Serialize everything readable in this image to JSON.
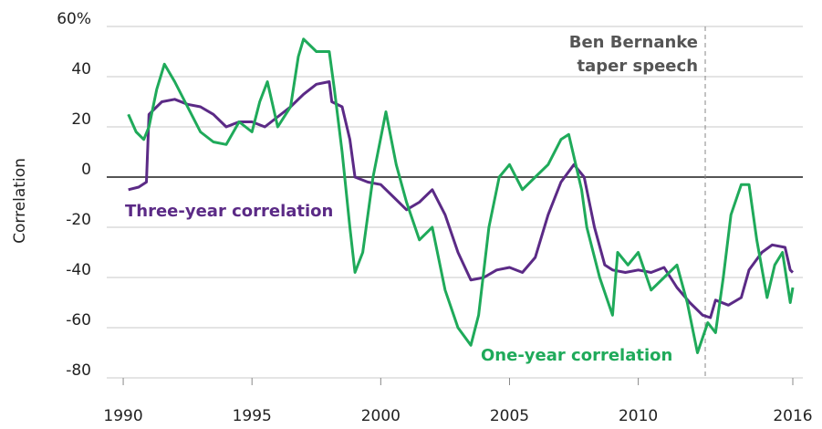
{
  "chart_data": {
    "type": "line",
    "y_axis_label": "Correlation",
    "xlim": [
      1989.36,
      2016.39
    ],
    "xticks": [
      1990,
      1995,
      2000,
      2005,
      2010,
      2016
    ],
    "ylim": [
      -80,
      60
    ],
    "yticks": [
      {
        "value": 60,
        "label": "60%"
      },
      40,
      20,
      0,
      -20,
      -40,
      -60,
      -80
    ],
    "grid": true,
    "annotation": {
      "text": [
        "Ben Bernanke",
        "taper speech"
      ],
      "x": 2012.6
    },
    "series": [
      {
        "name": "Three-year correlation",
        "color": "#5b2a86",
        "x": [
          1990.2,
          1990.6,
          1990.9,
          1991.0,
          1991.5,
          1992,
          1992.5,
          1993,
          1993.5,
          1994,
          1994.5,
          1995,
          1995.5,
          1996,
          1996.5,
          1997,
          1997.5,
          1998,
          1998.1,
          1998.5,
          1998.8,
          1999,
          1999.5,
          2000,
          2000.5,
          2001,
          2001.5,
          2002,
          2002.5,
          2003,
          2003.5,
          2004,
          2004.5,
          2005,
          2005.5,
          2006,
          2006.5,
          2007,
          2007.5,
          2007.9,
          2008.3,
          2008.7,
          2009,
          2009.5,
          2010,
          2010.5,
          2011,
          2011.5,
          2012,
          2012.5,
          2012.8,
          2013,
          2013.5,
          2014,
          2014.3,
          2014.8,
          2015.2,
          2015.7,
          2015.9,
          2016
        ],
        "values": [
          -5,
          -4,
          -2,
          25,
          30,
          31,
          29,
          28,
          25,
          20,
          22,
          22,
          20,
          24,
          28,
          33,
          37,
          38,
          30,
          28,
          15,
          0,
          -2,
          -3,
          -8,
          -13,
          -10,
          -5,
          -15,
          -30,
          -41,
          -40,
          -37,
          -36,
          -38,
          -32,
          -15,
          -2,
          5,
          0,
          -20,
          -35,
          -37,
          -38,
          -37,
          -38,
          -36,
          -44,
          -50,
          -55,
          -56,
          -49,
          -51,
          -48,
          -37,
          -30,
          -27,
          -28,
          -37,
          -38
        ]
      },
      {
        "name": "One-year correlation",
        "color": "#1faa5a",
        "x": [
          1990.2,
          1990.5,
          1990.8,
          1991.0,
          1991.3,
          1991.6,
          1992,
          1992.5,
          1993,
          1993.5,
          1994,
          1994.5,
          1995,
          1995.3,
          1995.6,
          1996,
          1996.5,
          1996.8,
          1997,
          1997.5,
          1998,
          1998.2,
          1998.5,
          1998.8,
          1999,
          1999.3,
          1999.7,
          2000.2,
          2000.6,
          2001,
          2001.5,
          2002,
          2002.5,
          2003,
          2003.5,
          2003.8,
          2004.2,
          2004.6,
          2005,
          2005.5,
          2006,
          2006.5,
          2007,
          2007.3,
          2007.8,
          2008,
          2008.5,
          2009,
          2009.2,
          2009.6,
          2010,
          2010.5,
          2011,
          2011.5,
          2011.9,
          2012.3,
          2012.7,
          2013,
          2013.3,
          2013.6,
          2014,
          2014.3,
          2014.6,
          2015,
          2015.3,
          2015.6,
          2015.9,
          2016
        ],
        "values": [
          25,
          18,
          15,
          20,
          35,
          45,
          38,
          28,
          18,
          14,
          13,
          22,
          18,
          30,
          38,
          20,
          28,
          48,
          55,
          50,
          50,
          35,
          10,
          -20,
          -38,
          -30,
          0,
          26,
          5,
          -10,
          -25,
          -20,
          -45,
          -60,
          -67,
          -55,
          -20,
          0,
          5,
          -5,
          0,
          5,
          15,
          17,
          -5,
          -20,
          -40,
          -55,
          -30,
          -35,
          -30,
          -45,
          -40,
          -35,
          -50,
          -70,
          -58,
          -62,
          -40,
          -15,
          -3,
          -3,
          -25,
          -48,
          -35,
          -30,
          -50,
          -44
        ]
      }
    ]
  }
}
